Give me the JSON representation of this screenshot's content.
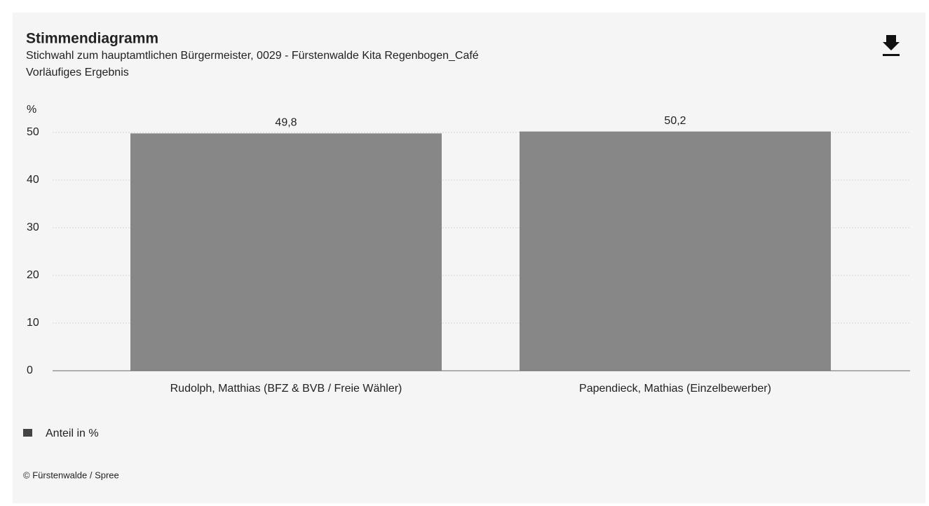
{
  "chart_data": {
    "type": "bar",
    "title": "Stimmendiagramm",
    "subtitle": "Stichwahl zum hauptamtlichen Bürgermeister, 0029 - Fürstenwalde Kita Regenbogen_Café",
    "subtitle2": "Vorläufiges Ergebnis",
    "y_label": "%",
    "categories": [
      "Rudolph, Matthias (BFZ & BVB / Freie Wähler)",
      "Papendieck, Mathias (Einzelbewerber)"
    ],
    "series": [
      {
        "name": "Anteil in %",
        "color": "#878787",
        "values": [
          49.8,
          50.2
        ],
        "value_labels": [
          "49,8",
          "50,2"
        ]
      }
    ],
    "ylim": [
      0,
      50
    ],
    "yticks": [
      0,
      10,
      20,
      30,
      40,
      50
    ],
    "grid": true,
    "source": "© Fürstenwalde / Spree"
  }
}
